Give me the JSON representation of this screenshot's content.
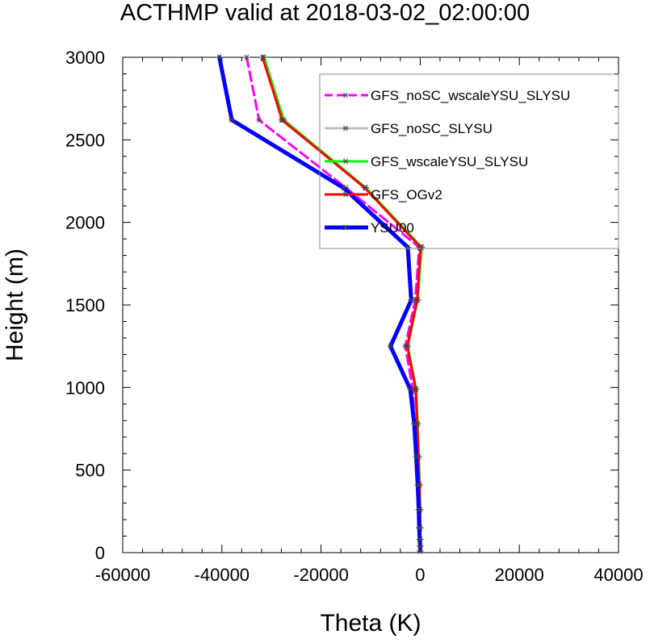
{
  "chart_data": {
    "type": "line",
    "title": "ACTHMP valid at 2018-03-02_02:00:00",
    "xlabel": "Theta (K)",
    "ylabel": "Height (m)",
    "xlim": [
      -60000,
      40000
    ],
    "ylim": [
      0,
      3000
    ],
    "xticks": [
      -60000,
      -40000,
      -20000,
      0,
      20000,
      40000
    ],
    "xtick_labels": [
      "-60000",
      "-40000",
      "-20000",
      "0",
      "20000",
      "40000"
    ],
    "yticks": [
      0,
      500,
      1000,
      1500,
      2000,
      2500,
      3000
    ],
    "ytick_labels": [
      "0",
      "500",
      "1000",
      "1500",
      "2000",
      "2500",
      "3000"
    ],
    "legend_position": "top-right",
    "grid": false,
    "series": [
      {
        "name": "GFS_noSC_wscaleYSU_SLYSU",
        "color": "#ff00ff",
        "dash": true,
        "width": 3,
        "points": [
          [
            -35000,
            3000
          ],
          [
            -32500,
            2620
          ],
          [
            -15000,
            2210
          ],
          [
            -200,
            1850
          ],
          [
            -1000,
            1530
          ],
          [
            -3000,
            1250
          ],
          [
            -1500,
            990
          ],
          [
            -1000,
            780
          ],
          [
            -600,
            580
          ],
          [
            -300,
            410
          ],
          [
            -200,
            260
          ],
          [
            -100,
            150
          ],
          [
            0,
            80
          ],
          [
            0,
            40
          ],
          [
            0,
            10
          ]
        ]
      },
      {
        "name": "GFS_noSC_SLYSU",
        "color": "#c0c0c0",
        "dash": false,
        "width": 3,
        "points": [
          [
            -31500,
            3000
          ],
          [
            -28000,
            2620
          ],
          [
            -11000,
            2210
          ],
          [
            200,
            1850
          ],
          [
            -500,
            1530
          ],
          [
            -2500,
            1250
          ],
          [
            -1000,
            990
          ],
          [
            -700,
            780
          ],
          [
            -400,
            580
          ],
          [
            -200,
            410
          ],
          [
            -100,
            260
          ],
          [
            0,
            150
          ],
          [
            0,
            80
          ],
          [
            0,
            40
          ],
          [
            0,
            10
          ]
        ]
      },
      {
        "name": "GFS_wscaleYSU_SLYSU",
        "color": "#00ff00",
        "dash": false,
        "width": 3,
        "points": [
          [
            -31500,
            3000
          ],
          [
            -27500,
            2620
          ],
          [
            -11000,
            2210
          ],
          [
            300,
            1850
          ],
          [
            -500,
            1530
          ],
          [
            -2500,
            1250
          ],
          [
            -800,
            990
          ],
          [
            -500,
            780
          ],
          [
            -300,
            580
          ],
          [
            -100,
            410
          ],
          [
            0,
            260
          ],
          [
            0,
            150
          ],
          [
            0,
            80
          ],
          [
            0,
            40
          ],
          [
            0,
            10
          ]
        ]
      },
      {
        "name": "GFS_OGv2",
        "color": "#ff0000",
        "dash": false,
        "width": 3,
        "points": [
          [
            -31800,
            3000
          ],
          [
            -27800,
            2620
          ],
          [
            -11200,
            2210
          ],
          [
            100,
            1850
          ],
          [
            -600,
            1530
          ],
          [
            -2600,
            1250
          ],
          [
            -900,
            990
          ],
          [
            -600,
            780
          ],
          [
            -350,
            580
          ],
          [
            -150,
            410
          ],
          [
            -50,
            260
          ],
          [
            0,
            150
          ],
          [
            0,
            80
          ],
          [
            0,
            40
          ],
          [
            0,
            10
          ]
        ]
      },
      {
        "name": "YSU00",
        "color": "#0000ff",
        "dash": false,
        "width": 5,
        "points": [
          [
            -40500,
            3000
          ],
          [
            -38000,
            2620
          ],
          [
            -15500,
            2210
          ],
          [
            -2500,
            1850
          ],
          [
            -1800,
            1530
          ],
          [
            -6000,
            1250
          ],
          [
            -2000,
            990
          ],
          [
            -1200,
            780
          ],
          [
            -800,
            580
          ],
          [
            -500,
            410
          ],
          [
            -300,
            260
          ],
          [
            -200,
            150
          ],
          [
            -100,
            80
          ],
          [
            0,
            40
          ],
          [
            0,
            10
          ]
        ]
      }
    ]
  }
}
